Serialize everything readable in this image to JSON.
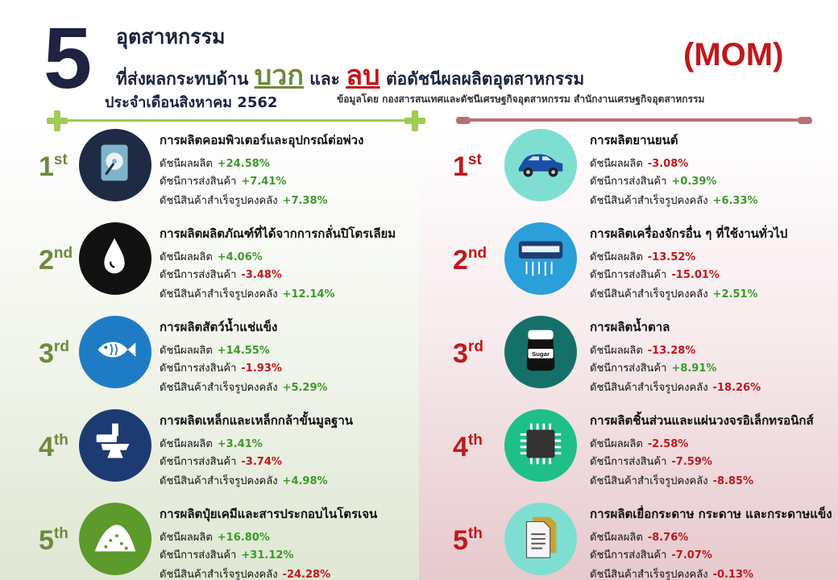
{
  "header": {
    "number": "5",
    "title_line1": "อุตสาหกรรม",
    "title_line2_a": "ที่ส่งผลกระทบด้าน",
    "positive": "บวก",
    "and": "และ",
    "negative": "ลบ",
    "title_line2_b": "ต่อดัชนีผลผลิตอุตสาหกรรม",
    "month_line": "ประจำเดือนสิงหาคม 2562",
    "badge": "(MOM)",
    "source": "ข้อมูลโดย กองสารสนเทศและดัชนีเศรษฐกิจอุตสาหกรรม สำนักงานเศรษฐกิจอุตสาหกรรม"
  },
  "labels": {
    "prod": "ดัชนีผลผลิต",
    "ship": "ดัชนีการส่งสินค้า",
    "inv": "ดัชนีสินค้าสำเร็จรูปคงคลัง"
  },
  "positive_items": [
    {
      "rank": "1",
      "suffix": "st",
      "name": "การผลิตคอมพิวเตอร์และอุปกรณ์ต่อพ่วง",
      "prod": "+24.58%",
      "ship": "+7.41%",
      "inv": "+7.38%",
      "icon": "hard-drive-icon",
      "color": "#1f2a44"
    },
    {
      "rank": "2",
      "suffix": "nd",
      "name": "การผลิตผลิตภัณฑ์ที่ได้จากการกลั่นปิโตรเลียม",
      "prod": "+4.06%",
      "ship": "-3.48%",
      "inv": "+12.14%",
      "icon": "oil-drop-icon",
      "color": "#111111"
    },
    {
      "rank": "3",
      "suffix": "rd",
      "name": "การผลิตสัตว์น้ำแช่แข็ง",
      "prod": "+14.55%",
      "ship": "-1.93%",
      "inv": "+5.29%",
      "icon": "fish-icon",
      "color": "#1e7cc4"
    },
    {
      "rank": "4",
      "suffix": "th",
      "name": "การผลิตเหล็กและเหล็กกล้าขั้นมูลฐาน",
      "prod": "+3.41%",
      "ship": "-3.74%",
      "inv": "+4.98%",
      "icon": "anvil-icon",
      "color": "#1d3b73"
    },
    {
      "rank": "5",
      "suffix": "th",
      "name": "การผลิตปุ๋ยเคมีและสารประกอบไนโตรเจน",
      "prod": "+16.80%",
      "ship": "+31.12%",
      "inv": "-24.28%",
      "icon": "fertilizer-pile-icon",
      "color": "#5c9a2b"
    }
  ],
  "negative_items": [
    {
      "rank": "1",
      "suffix": "st",
      "name": "การผลิตยานยนต์",
      "prod": "-3.08%",
      "ship": "+0.39%",
      "inv": "+6.33%",
      "icon": "car-icon",
      "color": "#7fded2"
    },
    {
      "rank": "2",
      "suffix": "nd",
      "name": "การผลิตเครื่องจักรอื่น ๆ ที่ใช้งานทั่วไป",
      "prod": "-13.52%",
      "ship": "-15.01%",
      "inv": "+2.51%",
      "icon": "air-conditioner-icon",
      "color": "#2b9fd9"
    },
    {
      "rank": "3",
      "suffix": "rd",
      "name": "การผลิตน้ำตาล",
      "prod": "-13.28%",
      "ship": "+8.91%",
      "inv": "-18.26%",
      "icon": "sugar-jar-icon",
      "color": "#16706a"
    },
    {
      "rank": "4",
      "suffix": "th",
      "name": "การผลิตชิ้นส่วนและแผ่นวงจรอิเล็กทรอนิกส์",
      "prod": "-2.58%",
      "ship": "-7.59%",
      "inv": "-8.85%",
      "icon": "microchip-icon",
      "color": "#1fbf8a"
    },
    {
      "rank": "5",
      "suffix": "th",
      "name": "การผลิตเยื่อกระดาษ กระดาษ และกระดาษแข็ง",
      "prod": "-8.76%",
      "ship": "-7.07%",
      "inv": "-0.13%",
      "icon": "paper-document-icon",
      "color": "#7fded2"
    }
  ],
  "sugar_label": "Sugar"
}
